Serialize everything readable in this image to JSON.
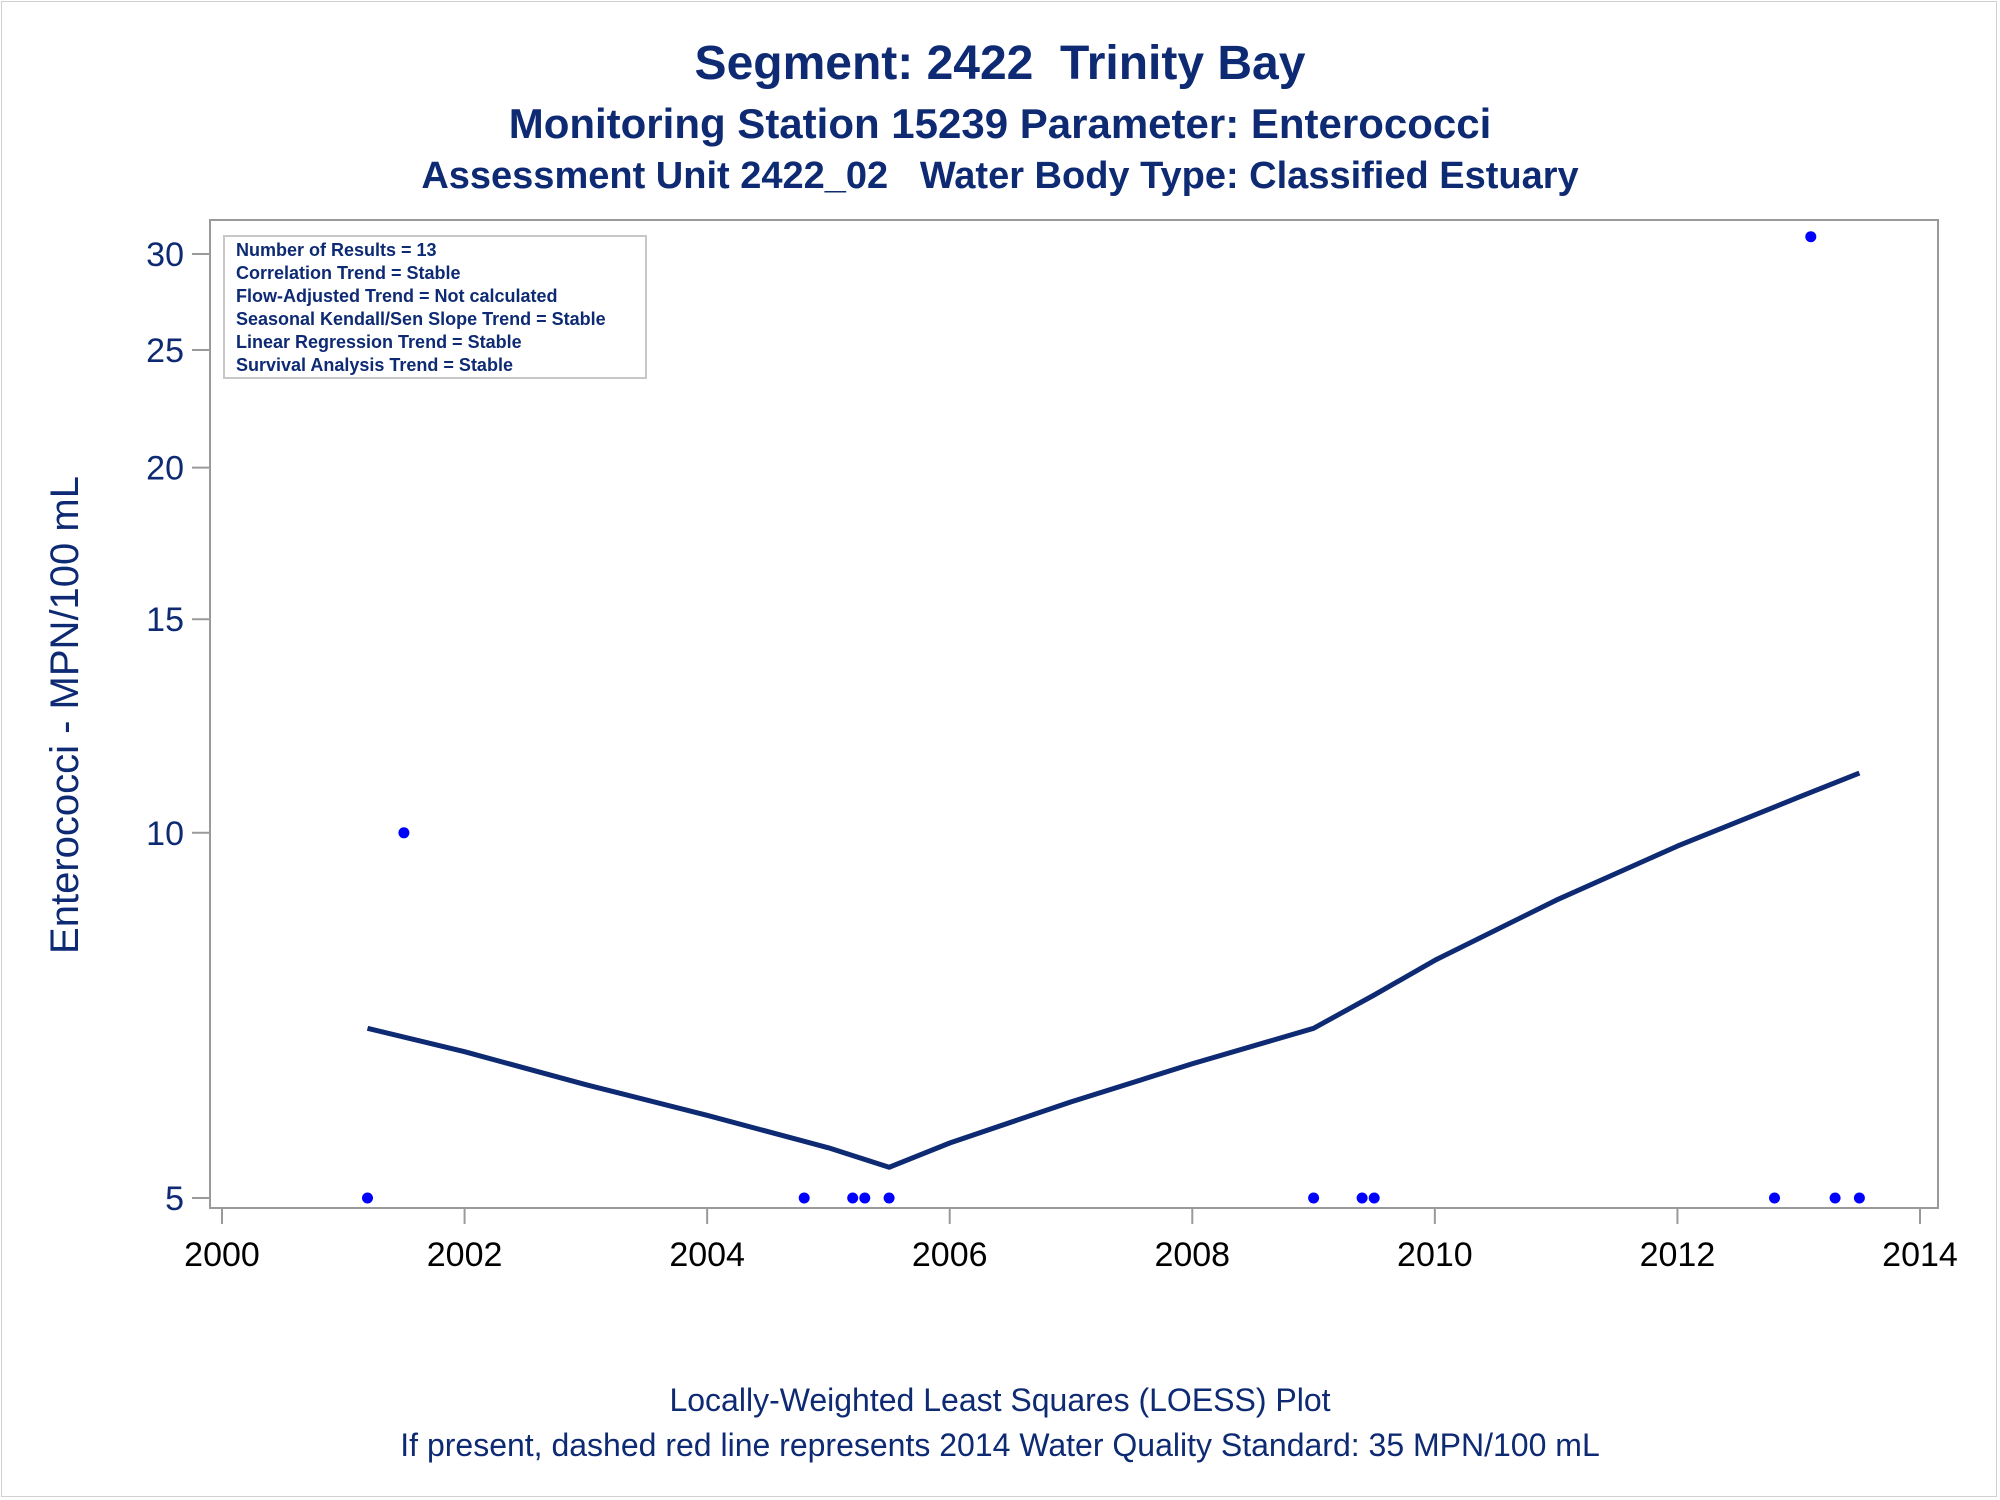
{
  "titles": {
    "line1": "Segment: 2422  Trinity Bay",
    "line2": "Monitoring Station 15239 Parameter: Enterococci",
    "line3": "Assessment Unit 2422_02   Water Body Type: Classified Estuary"
  },
  "footnotes": {
    "line1": "Locally-Weighted Least Squares (LOESS) Plot",
    "line2": "If present, dashed red line represents 2014 Water Quality Standard: 35 MPN/100 mL"
  },
  "stats_box": [
    "Number of Results = 13",
    "Correlation Trend = Stable",
    "Flow-Adjusted Trend = Not calculated",
    "Seasonal Kendall/Sen Slope Trend = Stable",
    "Linear Regression Trend = Stable",
    "Survival Analysis Trend = Stable"
  ],
  "colors": {
    "text": "#0d2a73",
    "points": "#0000ff",
    "loess": "#0d2a73",
    "axis": "#9a9a9a"
  },
  "chart_data": {
    "type": "scatter",
    "ylabel": "Enterococci - MPN/100 mL",
    "y_scale": "log",
    "xlim": [
      2000,
      2014
    ],
    "ylim": [
      5,
      30
    ],
    "x_ticks": [
      2000,
      2002,
      2004,
      2006,
      2008,
      2010,
      2012,
      2014
    ],
    "y_ticks": [
      5,
      10,
      15,
      20,
      25,
      30
    ],
    "grid": false,
    "points": [
      {
        "x": 2001.2,
        "y": 5
      },
      {
        "x": 2001.5,
        "y": 10
      },
      {
        "x": 2004.8,
        "y": 5
      },
      {
        "x": 2005.2,
        "y": 5
      },
      {
        "x": 2005.3,
        "y": 5
      },
      {
        "x": 2005.5,
        "y": 5
      },
      {
        "x": 2009.0,
        "y": 5
      },
      {
        "x": 2009.4,
        "y": 5
      },
      {
        "x": 2009.5,
        "y": 5
      },
      {
        "x": 2012.8,
        "y": 5
      },
      {
        "x": 2013.1,
        "y": 31
      },
      {
        "x": 2013.3,
        "y": 5
      },
      {
        "x": 2013.5,
        "y": 5
      }
    ],
    "loess_line": [
      {
        "x": 2001.2,
        "y": 6.9
      },
      {
        "x": 2002.0,
        "y": 6.6
      },
      {
        "x": 2003.0,
        "y": 6.2
      },
      {
        "x": 2004.0,
        "y": 5.85
      },
      {
        "x": 2005.0,
        "y": 5.5
      },
      {
        "x": 2005.5,
        "y": 5.3
      },
      {
        "x": 2006.0,
        "y": 5.55
      },
      {
        "x": 2007.0,
        "y": 6.0
      },
      {
        "x": 2008.0,
        "y": 6.45
      },
      {
        "x": 2009.0,
        "y": 6.9
      },
      {
        "x": 2009.5,
        "y": 7.35
      },
      {
        "x": 2010.0,
        "y": 7.85
      },
      {
        "x": 2011.0,
        "y": 8.8
      },
      {
        "x": 2012.0,
        "y": 9.75
      },
      {
        "x": 2013.0,
        "y": 10.7
      },
      {
        "x": 2013.5,
        "y": 11.2
      }
    ]
  }
}
